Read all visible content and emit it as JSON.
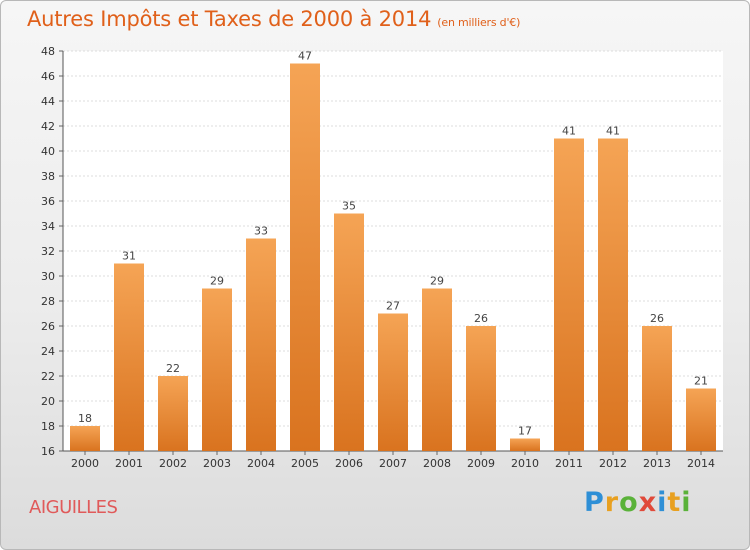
{
  "header": {
    "title": "Autres Impôts et Taxes de 2000 à 2014",
    "unit": "(en milliers d'€)"
  },
  "footer": {
    "commune": "AIGUILLES",
    "logo": "Proxiti"
  },
  "colors": {
    "bar_light": "#f5a455",
    "bar_dark": "#d9731f",
    "title": "#e0601a",
    "commune": "#e05a5a"
  },
  "chart_data": {
    "type": "bar",
    "title": "Autres Impôts et Taxes de 2000 à 2014",
    "subtitle": "(en milliers d'€)",
    "categories": [
      "2000",
      "2001",
      "2002",
      "2003",
      "2004",
      "2005",
      "2006",
      "2007",
      "2008",
      "2009",
      "2010",
      "2011",
      "2012",
      "2013",
      "2014"
    ],
    "values": [
      18,
      31,
      22,
      29,
      33,
      47,
      35,
      27,
      29,
      26,
      17,
      41,
      41,
      26,
      21
    ],
    "ylim": [
      16,
      48
    ],
    "yticks": [
      16,
      18,
      20,
      22,
      24,
      26,
      28,
      30,
      32,
      34,
      36,
      38,
      40,
      42,
      44,
      46,
      48
    ],
    "grid": true,
    "legend": "none"
  }
}
